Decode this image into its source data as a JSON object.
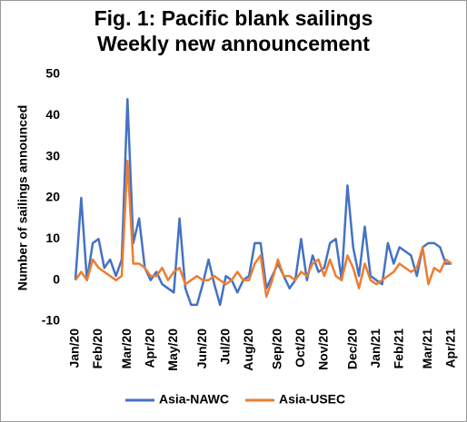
{
  "chart_data": {
    "type": "line",
    "title": "Fig. 1: Pacific blank sailings",
    "subtitle": "Weekly new announcement",
    "y_label": "Number of sailings announced",
    "categories": [
      "Jan/20",
      null,
      null,
      null,
      "Feb/20",
      null,
      null,
      null,
      null,
      "Mar/20",
      null,
      null,
      null,
      "Apr/20",
      null,
      null,
      null,
      "May/20",
      null,
      null,
      null,
      null,
      "Jun/20",
      null,
      null,
      null,
      "Jul/20",
      null,
      null,
      null,
      "Aug/20",
      null,
      null,
      null,
      null,
      "Sep/20",
      null,
      null,
      null,
      "Oct/20",
      null,
      null,
      null,
      "Nov/20",
      null,
      null,
      null,
      null,
      "Dec/20",
      null,
      null,
      null,
      "Jan/21",
      null,
      null,
      null,
      "Feb/21",
      null,
      null,
      null,
      null,
      "Mar/21",
      null,
      null,
      null,
      "Apr/21"
    ],
    "series": [
      {
        "name": "Asia-NAWC",
        "color": "#4472c4",
        "values": [
          0,
          20,
          0,
          9,
          10,
          3,
          5,
          1,
          5,
          44,
          9,
          15,
          3,
          0,
          2,
          -1,
          -2,
          -3,
          15,
          -2,
          -6,
          -6,
          -1,
          5,
          -1,
          -6,
          1,
          0,
          -3,
          0,
          1,
          9,
          9,
          -2,
          1,
          4,
          1,
          -2,
          0,
          10,
          0,
          6,
          2,
          3,
          9,
          10,
          0,
          23,
          8,
          1,
          13,
          1,
          0,
          -1,
          9,
          4,
          8,
          7,
          6,
          1,
          8,
          9,
          9,
          8,
          4,
          4
        ]
      },
      {
        "name": "Asia-USEC",
        "color": "#ed7d31",
        "values": [
          0,
          2,
          0,
          5,
          3,
          2,
          1,
          0,
          1,
          29,
          4,
          4,
          3,
          1,
          1,
          3,
          0,
          2,
          3,
          -1,
          0,
          1,
          0,
          0,
          1,
          0,
          -1,
          0,
          2,
          0,
          0,
          4,
          6,
          -4,
          0,
          5,
          1,
          1,
          0,
          2,
          1,
          4,
          5,
          1,
          5,
          1,
          0,
          6,
          3,
          -2,
          4,
          0,
          -1,
          0,
          1,
          2,
          4,
          3,
          2,
          3,
          8,
          -1,
          3,
          2,
          5,
          4
        ]
      }
    ],
    "ylim": [
      -10,
      50
    ],
    "yticks": [
      -10,
      0,
      10,
      20,
      30,
      40,
      50
    ],
    "grid": false,
    "legend": "bottom"
  }
}
